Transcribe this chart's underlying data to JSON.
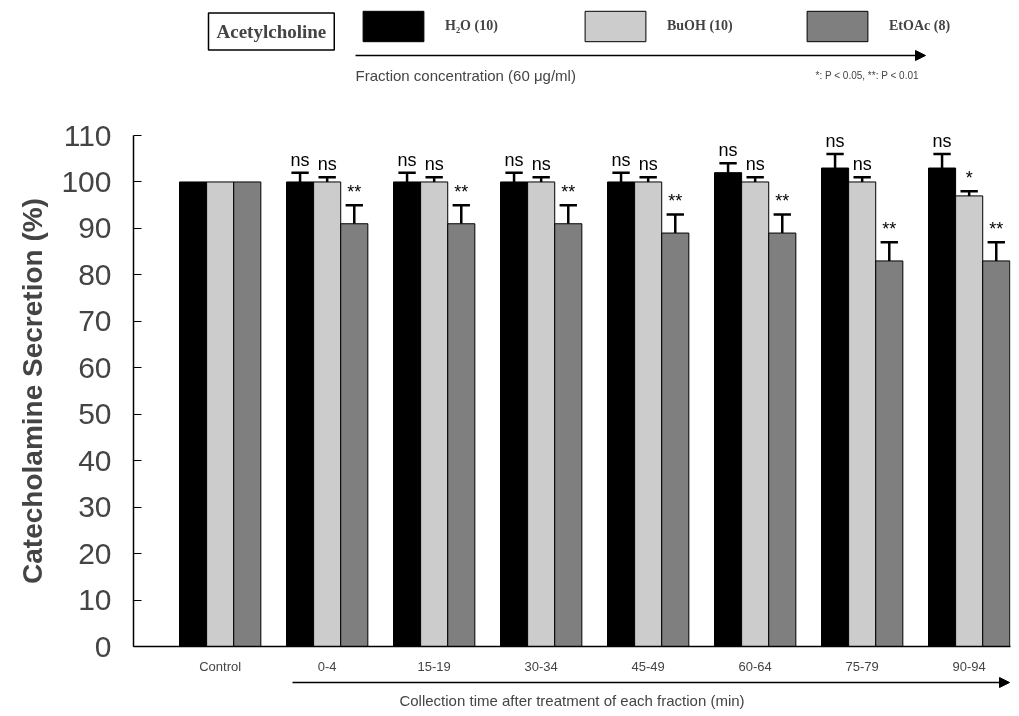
{
  "chart_data": {
    "type": "bar",
    "title": "Acetylcholine",
    "legend_title": "Fraction concentration (60 μg/ml)",
    "xlabel": "Collection time after treatment of each fraction (min)",
    "ylabel": "Catecholamine Secretion (%)",
    "categories": [
      "Control",
      "0-4",
      "15-19",
      "30-34",
      "45-49",
      "60-64",
      "75-79",
      "90-94"
    ],
    "series": [
      {
        "name": "H₂O (10)",
        "color": "#000000",
        "values": [
          100,
          100,
          100,
          100,
          100,
          102,
          103,
          103
        ],
        "errors": [
          null,
          2,
          2,
          2,
          2,
          2,
          3,
          3
        ],
        "value_labels": [
          null,
          "ns",
          "ns",
          "ns",
          "ns",
          "ns",
          "ns",
          "ns"
        ]
      },
      {
        "name": "BuOH (10)",
        "color": "#cccccc",
        "values": [
          100,
          100,
          100,
          100,
          100,
          100,
          100,
          97
        ],
        "errors": [
          null,
          1,
          1,
          1,
          1,
          1,
          1,
          1
        ],
        "value_labels": [
          null,
          "ns",
          "ns",
          "ns",
          "ns",
          "ns",
          "ns",
          "*"
        ]
      },
      {
        "name": "EtOAc (8)",
        "color": "#7f7f7f",
        "values": [
          100,
          91,
          91,
          91,
          89,
          89,
          83,
          83
        ],
        "errors": [
          null,
          4,
          4,
          4,
          4,
          4,
          4,
          4
        ],
        "value_labels": [
          null,
          "**",
          "**",
          "**",
          "**",
          "**",
          "**",
          "**"
        ]
      }
    ],
    "ylim": [
      0,
      110
    ],
    "yticks": [
      0,
      10,
      20,
      30,
      40,
      50,
      60,
      70,
      80,
      90,
      100,
      110
    ],
    "legend": "top",
    "annotations": [
      "*: P < 0.05, **: P < 0.01"
    ]
  }
}
